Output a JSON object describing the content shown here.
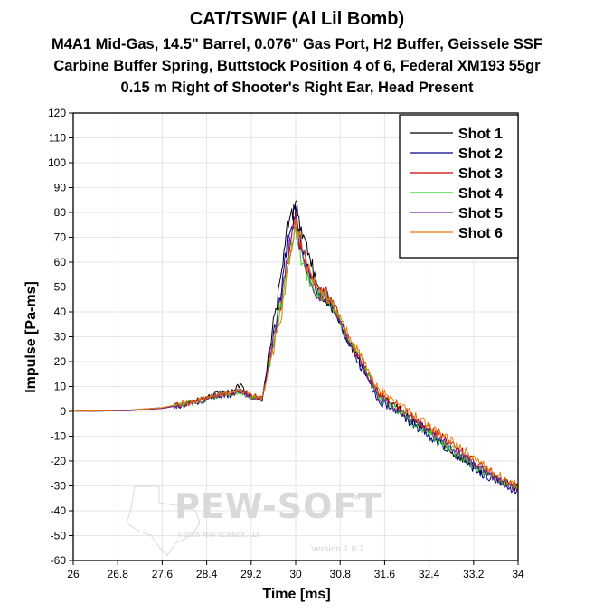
{
  "chart_data": {
    "type": "line",
    "title": "CAT/TSWIF (Al Lil Bomb)",
    "subtitle_lines": [
      "M4A1 Mid-Gas, 14.5\" Barrel, 0.076\" Gas Port, H2 Buffer, Geissele SSF",
      "Carbine Buffer Spring, Buttstock Position 4 of 6, Federal XM193 55gr",
      "0.15 m Right of Shooter's Right Ear, Head Present"
    ],
    "xlabel": "Time [ms]",
    "ylabel": "Impulse [Pa-ms]",
    "xlim": [
      26,
      34
    ],
    "ylim": [
      -60,
      120
    ],
    "x_ticks": [
      "26",
      "26.8",
      "27.6",
      "28.4",
      "29.2",
      "30",
      "30.8",
      "31.6",
      "32.4",
      "33.2",
      "34"
    ],
    "y_ticks": [
      "120",
      "110",
      "100",
      "90",
      "80",
      "70",
      "60",
      "50",
      "40",
      "30",
      "20",
      "10",
      "0",
      "-10",
      "-20",
      "-30",
      "-40",
      "-50",
      "-60"
    ],
    "legend_position": "top-right",
    "series": [
      {
        "name": "Shot 1",
        "color": "#000000",
        "x": [
          26,
          27.0,
          27.6,
          28.2,
          28.6,
          28.9,
          29.0,
          29.2,
          29.4,
          29.6,
          29.75,
          29.85,
          29.95,
          30.0,
          30.1,
          30.2,
          30.3,
          30.4,
          30.55,
          30.7,
          30.9,
          31.1,
          31.3,
          31.5,
          31.8,
          32.1,
          32.4,
          32.8,
          33.2,
          33.6,
          34
        ],
        "y": [
          0,
          0.5,
          1.5,
          4,
          7,
          8,
          11,
          6,
          5,
          35,
          55,
          75,
          80,
          86,
          72,
          67,
          58,
          48,
          45,
          40,
          30,
          22,
          14,
          6,
          2,
          -4,
          -8,
          -16,
          -22,
          -27,
          -31
        ]
      },
      {
        "name": "Shot 2",
        "color": "#00008b",
        "x": [
          26,
          27.0,
          27.6,
          28.2,
          28.6,
          28.9,
          29.0,
          29.2,
          29.4,
          29.6,
          29.75,
          29.85,
          29.95,
          30.0,
          30.1,
          30.2,
          30.3,
          30.4,
          30.55,
          30.7,
          30.9,
          31.1,
          31.3,
          31.5,
          31.8,
          32.1,
          32.4,
          32.8,
          33.2,
          33.6,
          34
        ],
        "y": [
          0,
          0.3,
          1.2,
          3.5,
          6,
          7,
          8,
          5.5,
          5,
          30,
          50,
          68,
          76,
          80,
          66,
          60,
          53,
          47,
          46,
          40,
          30,
          21,
          13,
          4,
          0,
          -5,
          -10,
          -16,
          -23,
          -28,
          -32
        ]
      },
      {
        "name": "Shot 3",
        "color": "#cc0000",
        "x": [
          26,
          27.0,
          27.6,
          28.2,
          28.6,
          28.9,
          29.0,
          29.2,
          29.4,
          29.6,
          29.75,
          29.85,
          29.95,
          30.0,
          30.1,
          30.2,
          30.3,
          30.4,
          30.55,
          30.7,
          30.9,
          31.1,
          31.3,
          31.5,
          31.8,
          32.1,
          32.4,
          32.8,
          33.2,
          33.6,
          34
        ],
        "y": [
          0,
          0.4,
          1.3,
          3.8,
          6.5,
          7.5,
          8.5,
          6,
          5.5,
          28,
          45,
          62,
          72,
          78,
          65,
          58,
          52,
          47,
          48,
          42,
          32,
          23,
          15,
          7,
          3,
          -2,
          -7,
          -13,
          -20,
          -26,
          -31
        ]
      },
      {
        "name": "Shot 4",
        "color": "#22dd22",
        "x": [
          26,
          27.0,
          27.6,
          28.2,
          28.6,
          28.9,
          29.0,
          29.2,
          29.4,
          29.6,
          29.75,
          29.85,
          29.95,
          30.0,
          30.1,
          30.2,
          30.3,
          30.4,
          30.55,
          30.7,
          30.9,
          31.1,
          31.3,
          31.5,
          31.8,
          32.1,
          32.4,
          32.8,
          33.2,
          33.6,
          34
        ],
        "y": [
          0,
          0.4,
          1.4,
          3.6,
          6.2,
          7,
          7.8,
          5.8,
          5.2,
          27,
          44,
          58,
          68,
          72,
          60,
          55,
          50,
          47,
          46,
          41,
          31,
          24,
          16,
          6,
          1,
          -4,
          -9,
          -15,
          -22,
          -27,
          -31
        ]
      },
      {
        "name": "Shot 5",
        "color": "#7a1fa2",
        "x": [
          26,
          27.0,
          27.6,
          28.2,
          28.6,
          28.9,
          29.0,
          29.2,
          29.4,
          29.6,
          29.75,
          29.85,
          29.95,
          30.0,
          30.1,
          30.2,
          30.3,
          30.4,
          30.55,
          30.7,
          30.9,
          31.1,
          31.3,
          31.5,
          31.8,
          32.1,
          32.4,
          32.8,
          33.2,
          33.6,
          34
        ],
        "y": [
          0,
          0.3,
          1.3,
          3.7,
          6.3,
          7.2,
          8.2,
          5.6,
          5.1,
          29,
          47,
          64,
          73,
          76,
          63,
          57,
          52,
          46,
          47,
          41,
          31,
          22,
          14,
          5,
          1,
          -3,
          -8,
          -14,
          -21,
          -27,
          -31
        ]
      },
      {
        "name": "Shot 6",
        "color": "#ee7700",
        "x": [
          26,
          27.0,
          27.6,
          28.2,
          28.6,
          28.9,
          29.0,
          29.2,
          29.4,
          29.6,
          29.75,
          29.85,
          29.95,
          30.0,
          30.1,
          30.2,
          30.3,
          30.4,
          30.55,
          30.7,
          30.9,
          31.1,
          31.3,
          31.5,
          31.8,
          32.1,
          32.4,
          32.8,
          33.2,
          33.6,
          34
        ],
        "y": [
          0,
          0.5,
          1.5,
          4.2,
          6.8,
          7.6,
          8.6,
          6.2,
          5.6,
          25,
          40,
          55,
          68,
          78,
          68,
          60,
          54,
          48,
          47,
          42,
          33,
          25,
          17,
          9,
          4,
          -1,
          -6,
          -12,
          -19,
          -25,
          -30
        ]
      }
    ]
  },
  "watermark": {
    "brand": "PEW-SOFT",
    "trademark": "TM",
    "copyright": "©2020 PEW SCIENCE, LLC",
    "version": "Version 1.0.2"
  }
}
